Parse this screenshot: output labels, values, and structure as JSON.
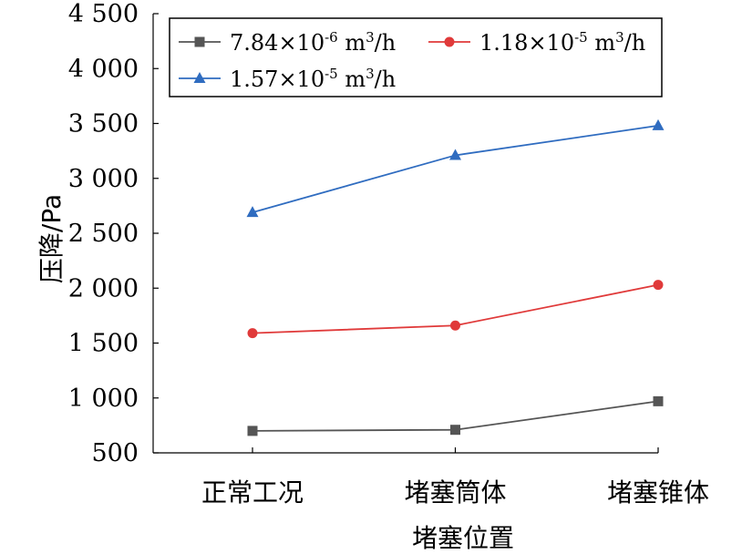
{
  "chart_data": {
    "type": "line",
    "xlabel": "堵塞位置",
    "ylabel": "压降/Pa",
    "categories": [
      "正常工况",
      "堵塞筒体",
      "堵塞锥体"
    ],
    "ylim": [
      500,
      4500
    ],
    "yticks": [
      500,
      1000,
      1500,
      2000,
      2500,
      3000,
      3500,
      4000,
      4500
    ],
    "ytick_labels": [
      "500",
      "1 000",
      "1 500",
      "2 000",
      "2 500",
      "3 000",
      "3 500",
      "4 000",
      "4 500"
    ],
    "grid": false,
    "legend_position": "top",
    "series": [
      {
        "name_main": "7.84×10",
        "name_exp": "-6",
        "name_unit": " m",
        "name_unit_exp": "3",
        "name_tail": "/h",
        "values": [
          700,
          710,
          970
        ],
        "color": "#555555",
        "marker": "square"
      },
      {
        "name_main": "1.18×10",
        "name_exp": "-5",
        "name_unit": " m",
        "name_unit_exp": "3",
        "name_tail": "/h",
        "values": [
          1590,
          1660,
          2030
        ],
        "color": "#e03a3a",
        "marker": "circle"
      },
      {
        "name_main": "1.57×10",
        "name_exp": "-5",
        "name_unit": " m",
        "name_unit_exp": "3",
        "name_tail": "/h",
        "values": [
          2690,
          3210,
          3480
        ],
        "color": "#2f6cc0",
        "marker": "triangle"
      }
    ]
  }
}
